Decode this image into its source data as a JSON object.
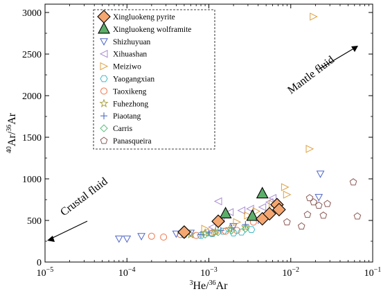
{
  "chart_data": {
    "type": "scatter",
    "x_scale": "log",
    "xlim": [
      1e-05,
      0.1
    ],
    "ylim": [
      0,
      3100
    ],
    "x_ticks": [
      {
        "value": 1e-05,
        "base": "10",
        "exp": "−5"
      },
      {
        "value": 0.0001,
        "base": "10",
        "exp": "−4"
      },
      {
        "value": 0.001,
        "base": "10",
        "exp": "−3"
      },
      {
        "value": 0.01,
        "base": "10",
        "exp": "−2"
      },
      {
        "value": 0.1,
        "base": "10",
        "exp": "−1"
      }
    ],
    "y_ticks": [
      {
        "value": 0,
        "label": "0"
      },
      {
        "value": 500,
        "label": "500"
      },
      {
        "value": 1000,
        "label": "1000"
      },
      {
        "value": 1500,
        "label": "1500"
      },
      {
        "value": 2000,
        "label": "2000"
      },
      {
        "value": 2500,
        "label": "2500"
      },
      {
        "value": 3000,
        "label": "3000"
      }
    ],
    "xlabel": {
      "sup1": "3",
      "main1": "He/",
      "sup2": "36",
      "main2": "Ar"
    },
    "ylabel": {
      "sup1": "40",
      "main1": "Ar/",
      "sup2": "36",
      "main2": "Ar"
    },
    "grid": false,
    "legend_position": "top-left",
    "annotations": [
      {
        "text": "Mantle fluid",
        "arrow": "up-right"
      },
      {
        "text": "Crustal fluid",
        "arrow": "down-left"
      }
    ],
    "series": [
      {
        "name": "Xingluokeng pyrite",
        "marker": "diamond",
        "color": "#000000",
        "fill": "#f4a771",
        "points": [
          [
            0.0005,
            360
          ],
          [
            0.0013,
            490
          ],
          [
            0.0045,
            520
          ],
          [
            0.0055,
            580
          ],
          [
            0.0068,
            690
          ],
          [
            0.0072,
            630
          ]
        ]
      },
      {
        "name": "Xingluokeng wolframite",
        "marker": "triangle-up",
        "color": "#000000",
        "fill": "#5caf6a",
        "points": [
          [
            0.0016,
            580
          ],
          [
            0.0034,
            550
          ],
          [
            0.0045,
            820
          ]
        ]
      },
      {
        "name": "Shizhuyuan",
        "marker": "triangle-down",
        "color": "#4e65c8",
        "fill": "none",
        "points": [
          [
            8e-05,
            280
          ],
          [
            0.0001,
            280
          ],
          [
            0.00015,
            310
          ],
          [
            0.0004,
            340
          ],
          [
            0.0006,
            350
          ],
          [
            0.002,
            430
          ],
          [
            0.022,
            780
          ],
          [
            0.023,
            1060
          ]
        ]
      },
      {
        "name": "Xihuashan",
        "marker": "triangle-left",
        "color": "#a78bcf",
        "fill": "none",
        "points": [
          [
            0.0011,
            420
          ],
          [
            0.0014,
            520
          ],
          [
            0.0018,
            600
          ],
          [
            0.0025,
            620
          ],
          [
            0.0032,
            640
          ],
          [
            0.0045,
            660
          ],
          [
            0.0055,
            720
          ],
          [
            0.0013,
            730
          ],
          [
            0.006,
            770
          ]
        ]
      },
      {
        "name": "Meiziwo",
        "marker": "triangle-right",
        "color": "#dda041",
        "fill": "none",
        "points": [
          [
            0.0009,
            400
          ],
          [
            0.0012,
            350
          ],
          [
            0.0022,
            480
          ],
          [
            0.003,
            560
          ],
          [
            0.0038,
            610
          ],
          [
            0.006,
            700
          ],
          [
            0.009,
            810
          ],
          [
            0.0085,
            900
          ],
          [
            0.017,
            1360
          ],
          [
            0.019,
            2950
          ]
        ]
      },
      {
        "name": "Yaogangxian",
        "marker": "hexagon",
        "color": "#41b9c8",
        "fill": "none",
        "points": [
          [
            0.0005,
            330
          ],
          [
            0.0008,
            320
          ],
          [
            0.0011,
            340
          ],
          [
            0.0015,
            370
          ],
          [
            0.002,
            350
          ],
          [
            0.0025,
            360
          ],
          [
            0.0033,
            390
          ]
        ]
      },
      {
        "name": "Taoxikeng",
        "marker": "circle",
        "color": "#f0744a",
        "fill": "none",
        "points": [
          [
            0.0002,
            310
          ],
          [
            0.00028,
            300
          ],
          [
            0.00045,
            330
          ],
          [
            0.0007,
            320
          ],
          [
            0.0011,
            350
          ],
          [
            0.0016,
            370
          ],
          [
            0.0022,
            380
          ],
          [
            0.0035,
            480
          ]
        ]
      },
      {
        "name": "Fuhezhong",
        "marker": "star",
        "color": "#a7a03c",
        "fill": "none",
        "points": [
          [
            0.0006,
            330
          ],
          [
            0.0009,
            350
          ],
          [
            0.0012,
            360
          ],
          [
            0.0018,
            400
          ],
          [
            0.0028,
            420
          ]
        ]
      },
      {
        "name": "Piaotang",
        "marker": "plus",
        "color": "#5878c8",
        "fill": "none",
        "points": [
          [
            0.0008,
            330
          ],
          [
            0.001,
            350
          ],
          [
            0.0014,
            380
          ],
          [
            0.0019,
            410
          ],
          [
            0.0028,
            450
          ],
          [
            0.004,
            500
          ],
          [
            0.006,
            580
          ]
        ]
      },
      {
        "name": "Carris",
        "marker": "diamond-open",
        "color": "#5cbd7a",
        "fill": "none",
        "points": [
          [
            0.0009,
            330
          ],
          [
            0.0013,
            360
          ],
          [
            0.0019,
            380
          ],
          [
            0.0028,
            400
          ]
        ]
      },
      {
        "name": "Panasqueira",
        "marker": "pentagon",
        "color": "#8b5a55",
        "fill": "none",
        "points": [
          [
            0.009,
            480
          ],
          [
            0.0135,
            430
          ],
          [
            0.016,
            570
          ],
          [
            0.017,
            770
          ],
          [
            0.019,
            720
          ],
          [
            0.022,
            680
          ],
          [
            0.025,
            560
          ],
          [
            0.028,
            700
          ],
          [
            0.058,
            960
          ],
          [
            0.065,
            550
          ]
        ]
      }
    ]
  }
}
